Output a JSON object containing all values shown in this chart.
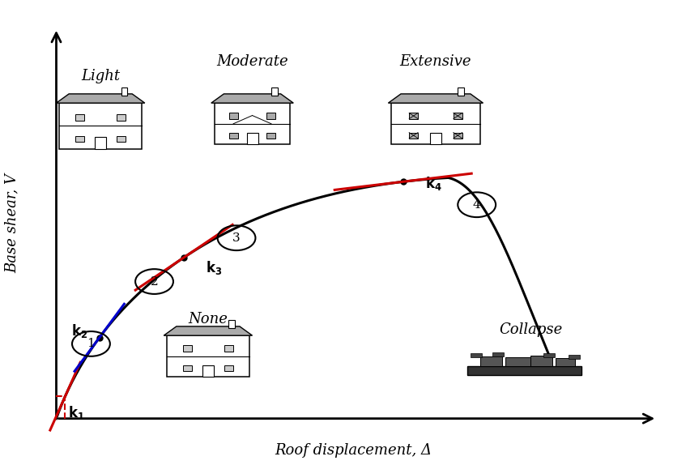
{
  "xlabel": "Roof displacement, Δ",
  "ylabel": "Base shear, V",
  "background_color": "#ffffff",
  "damage_labels": [
    "Light",
    "Moderate",
    "Extensive",
    "None",
    "Collapse"
  ],
  "ox": 0.8,
  "oy": 0.5,
  "xlim": [
    0,
    10.5
  ],
  "ylim": [
    -0.5,
    10.5
  ]
}
